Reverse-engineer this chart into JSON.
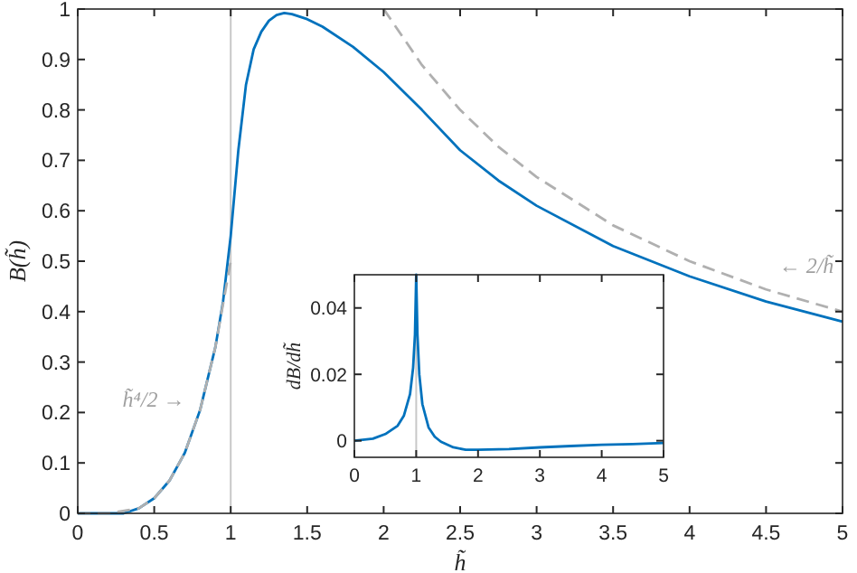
{
  "chart_data": [
    {
      "type": "line",
      "xlabel": "h̃",
      "ylabel": "B(h̃)",
      "xlim": [
        0,
        5
      ],
      "ylim": [
        0,
        1
      ],
      "xticks": [
        0,
        0.5,
        1,
        1.5,
        2,
        2.5,
        3,
        3.5,
        4,
        4.5,
        5
      ],
      "yticks": [
        0,
        0.1,
        0.2,
        0.3,
        0.4,
        0.5,
        0.6,
        0.7,
        0.8,
        0.9,
        1
      ],
      "grid": false,
      "series": [
        {
          "color": "#0072bd",
          "line_style": "solid",
          "x": [
            0,
            0.2,
            0.3,
            0.4,
            0.5,
            0.6,
            0.7,
            0.8,
            0.9,
            0.95,
            1,
            1.05,
            1.1,
            1.15,
            1.2,
            1.25,
            1.3,
            1.35,
            1.4,
            1.5,
            1.6,
            1.8,
            2,
            2.25,
            2.5,
            2.75,
            3,
            3.5,
            4,
            4.5,
            5
          ],
          "values": [
            0,
            0,
            0,
            0.01,
            0.03,
            0.065,
            0.12,
            0.205,
            0.33,
            0.42,
            0.55,
            0.72,
            0.85,
            0.92,
            0.955,
            0.977,
            0.988,
            0.992,
            0.99,
            0.98,
            0.965,
            0.925,
            0.875,
            0.8,
            0.72,
            0.66,
            0.61,
            0.53,
            0.47,
            0.42,
            0.38
          ]
        },
        {
          "color": "#b0b0b0",
          "line_style": "dashed",
          "x": [
            0,
            0.2,
            0.4,
            0.5,
            0.6,
            0.7,
            0.8,
            0.9,
            1
          ],
          "values": [
            0,
            0,
            0.01,
            0.03,
            0.065,
            0.12,
            0.205,
            0.33,
            0.5
          ]
        },
        {
          "color": "#b0b0b0",
          "line_style": "dashed",
          "x": [
            2,
            2.25,
            2.5,
            2.75,
            3,
            3.5,
            4,
            4.5,
            5
          ],
          "values": [
            1,
            0.889,
            0.8,
            0.727,
            0.667,
            0.571,
            0.5,
            0.444,
            0.4
          ]
        }
      ],
      "ref_lines": [
        {
          "axis": "x",
          "value": 1,
          "color": "#c8c8c8"
        }
      ],
      "annotations": [
        "h̃⁴/2 →",
        "← 2/h̃"
      ]
    },
    {
      "type": "line",
      "ylabel": "dB/dh̃",
      "xlim": [
        0,
        5
      ],
      "ylim": [
        -0.005,
        0.05
      ],
      "xticks": [
        0,
        1,
        2,
        3,
        4,
        5
      ],
      "yticks": [
        0,
        0.02,
        0.04
      ],
      "grid": false,
      "series": [
        {
          "color": "#0072bd",
          "line_style": "solid",
          "x": [
            0,
            0.3,
            0.5,
            0.7,
            0.8,
            0.9,
            0.95,
            0.98,
            1,
            1.02,
            1.05,
            1.1,
            1.2,
            1.3,
            1.4,
            1.6,
            1.8,
            2,
            2.5,
            3,
            3.5,
            4,
            4.5,
            5
          ],
          "values": [
            0,
            0.0006,
            0.002,
            0.0045,
            0.0075,
            0.014,
            0.022,
            0.032,
            0.05,
            0.032,
            0.02,
            0.011,
            0.004,
            0.0012,
            -0.0003,
            -0.002,
            -0.0027,
            -0.0027,
            -0.0025,
            -0.002,
            -0.0016,
            -0.0012,
            -0.001,
            -0.0007
          ]
        }
      ],
      "ref_lines": [
        {
          "axis": "x",
          "value": 1,
          "color": "#c8c8c8"
        }
      ]
    }
  ]
}
